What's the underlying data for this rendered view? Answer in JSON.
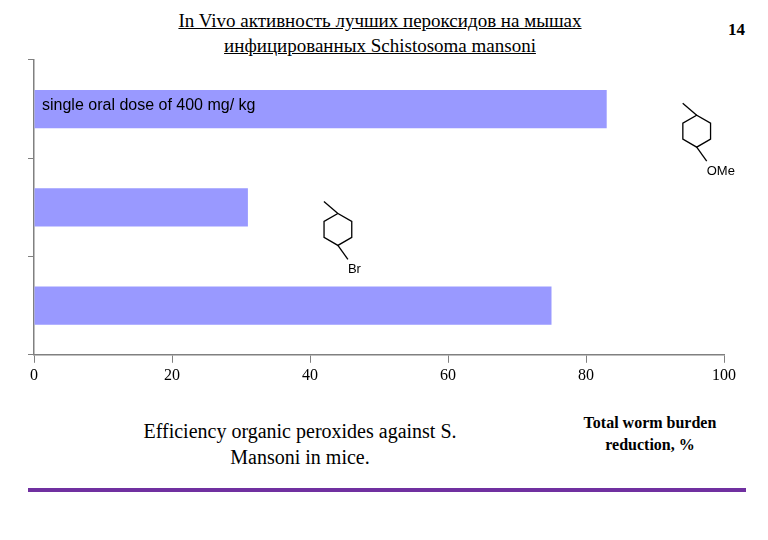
{
  "chart_data": {
    "type": "bar",
    "orientation": "horizontal",
    "title": [
      "In Vivo активность лучших пероксидов на мышах",
      "инфицированных Schistosoma mansoni"
    ],
    "slide_number": "14",
    "annotation": "single oral dose of 400 mg/ kg",
    "caption": "Efficiency organic peroxides against S. Mansoni in mice.",
    "xlabel": "Total worm burden reduction, %",
    "categories": [
      null,
      null,
      null
    ],
    "values": [
      83,
      31,
      75
    ],
    "structure_labels": [
      "OMe",
      "Br",
      null
    ],
    "color": "#9999ff",
    "xlim": [
      0,
      100
    ],
    "xticks": [
      0,
      20,
      40,
      60,
      80,
      100
    ],
    "grid": false,
    "tick_labels": "x"
  }
}
